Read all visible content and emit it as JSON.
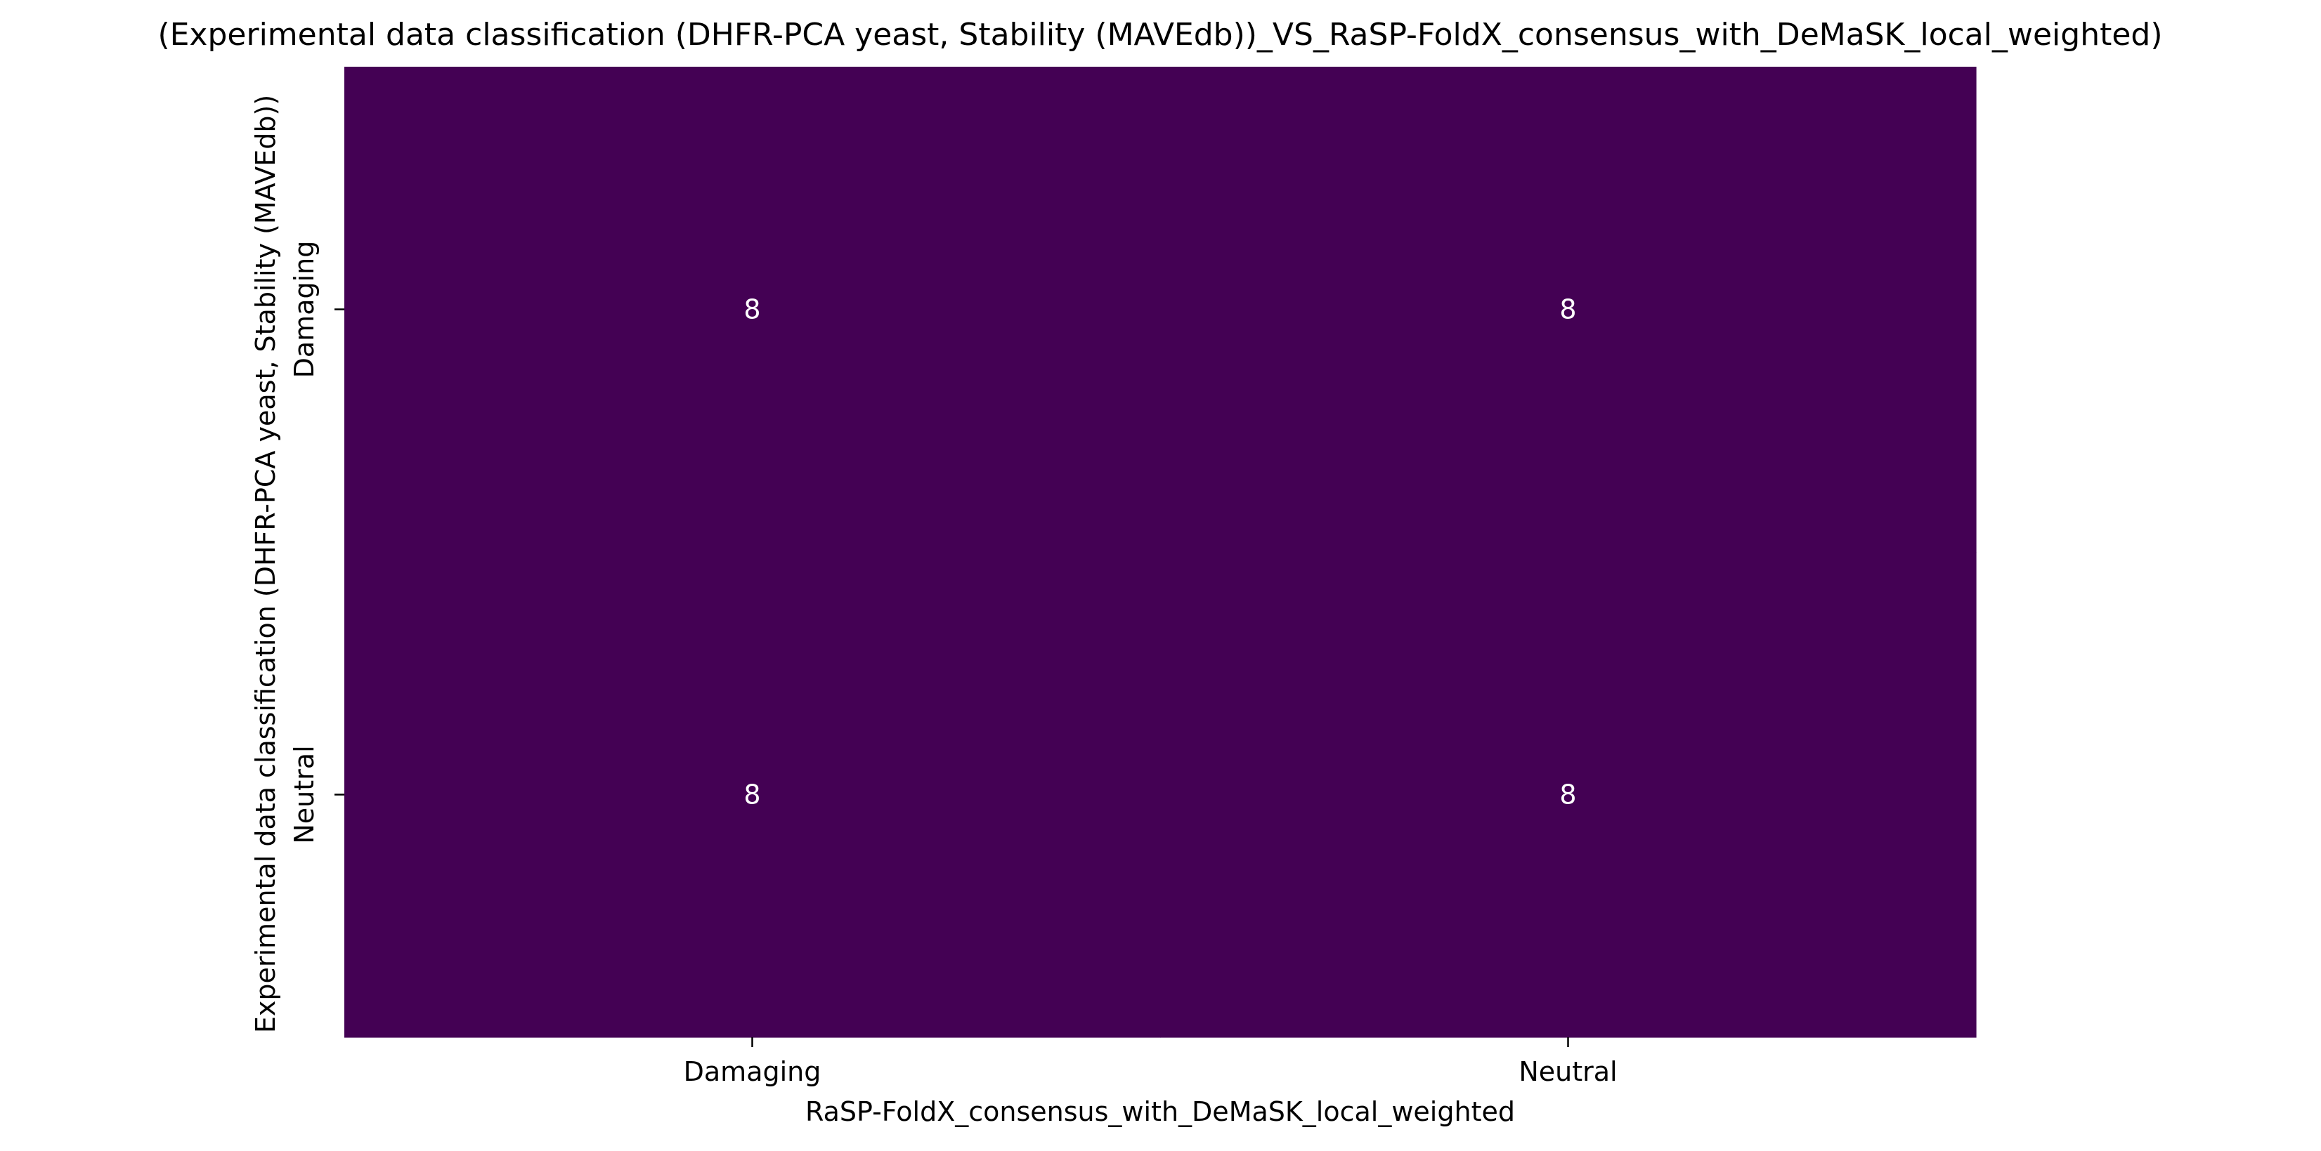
{
  "chart_data": {
    "type": "heatmap",
    "title": "(Experimental data classification (DHFR-PCA yeast, Stability (MAVEdb))_VS_RaSP-FoldX_consensus_with_DeMaSK_local_weighted)",
    "xlabel": "RaSP-FoldX_consensus_with_DeMaSK_local_weighted",
    "ylabel": "Experimental data classification (DHFR-PCA yeast, Stability (MAVEdb))",
    "x_categories": [
      "Damaging",
      "Neutral"
    ],
    "y_categories": [
      "Damaging",
      "Neutral"
    ],
    "values": [
      [
        8,
        8
      ],
      [
        8,
        8
      ]
    ],
    "cell_color": "#440154",
    "annotation_color": "#ffffff",
    "colorbar": false,
    "grid": false
  }
}
